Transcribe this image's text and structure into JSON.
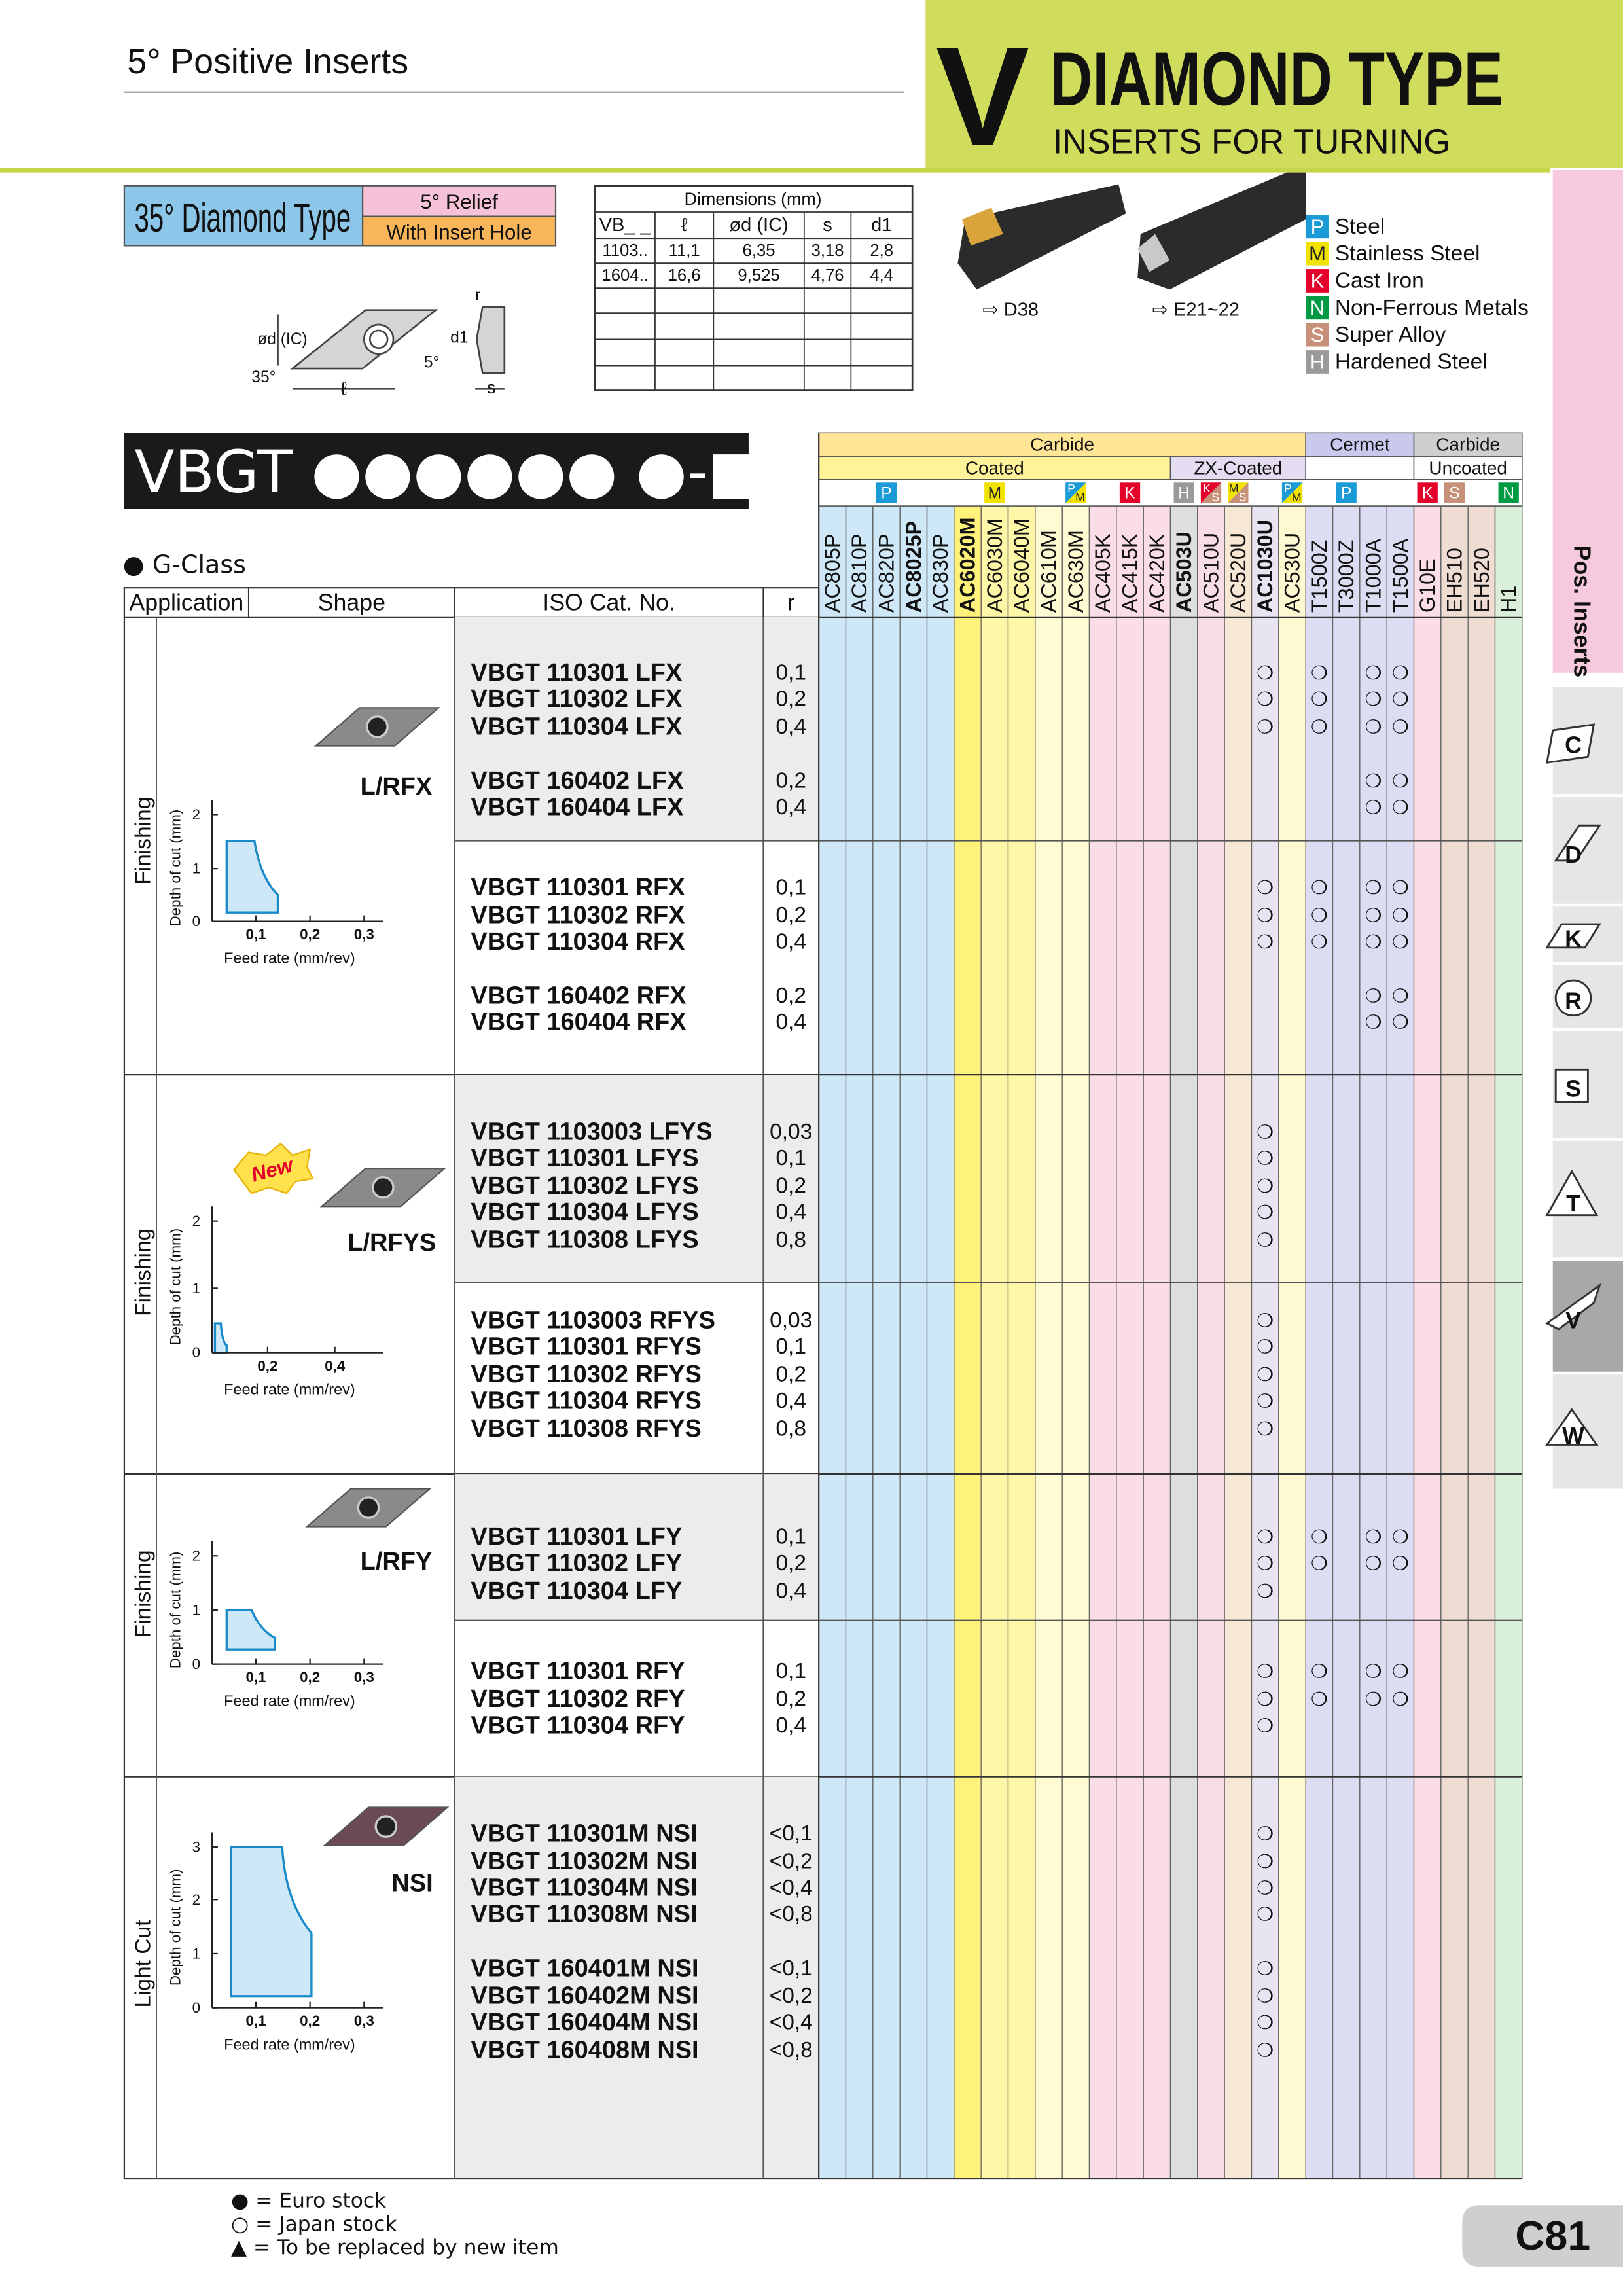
{
  "header": {
    "section": "5° Positive Inserts",
    "letter": "V",
    "title": "DIAMOND TYPE",
    "subtitle": "INSERTS FOR TURNING"
  },
  "type_box": {
    "name": "35° Diamond Type",
    "relief": "5° Relief",
    "hole": "With Insert Hole"
  },
  "drawing_labels": {
    "ic": "ød (IC)",
    "angle": "35°",
    "length": "ℓ",
    "relief": "5°",
    "thickness": "s",
    "hole": "d1",
    "radius": "r"
  },
  "dimensions": {
    "caption": "Dimensions (mm)",
    "headers": [
      "VB_ _",
      "ℓ",
      "ød (IC)",
      "s",
      "d1"
    ],
    "rows": [
      [
        "1103..",
        "11,1",
        "6,35",
        "3,18",
        "2,8"
      ],
      [
        "1604..",
        "16,6",
        "9,525",
        "4,76",
        "4,4"
      ]
    ]
  },
  "holders": [
    "⇨ D38",
    "⇨ E21~22"
  ],
  "materials": [
    {
      "code": "P",
      "label": "Steel",
      "color": "#1a9ad6"
    },
    {
      "code": "M",
      "label": "Stainless Steel",
      "color": "#f2e200"
    },
    {
      "code": "K",
      "label": "Cast Iron",
      "color": "#e3002b"
    },
    {
      "code": "N",
      "label": "Non-Ferrous Metals",
      "color": "#009a44"
    },
    {
      "code": "S",
      "label": "Super Alloy",
      "color": "#c69178"
    },
    {
      "code": "H",
      "label": "Hardened Steel",
      "color": "#9a9a9a"
    }
  ],
  "product_code": "VBGT ●●●●●● ●-■■",
  "class_label": "● G-Class",
  "table": {
    "headers": [
      "Application",
      "Shape",
      "ISO Cat. No.",
      "r"
    ],
    "families": [
      {
        "label": "Carbide",
        "subfamilies": [
          {
            "label": "Coated",
            "grades": [
              {
                "name": "AC805P",
                "color": "#cfe8f8",
                "iso": null,
                "bold": false
              },
              {
                "name": "AC810P",
                "color": "#cfe8f8",
                "iso": null,
                "bold": false
              },
              {
                "name": "AC820P",
                "color": "#cfe8f8",
                "iso": [
                  "P"
                ],
                "bold": false
              },
              {
                "name": "AC8025P",
                "color": "#cfe8f8",
                "iso": null,
                "bold": true
              },
              {
                "name": "AC830P",
                "color": "#cfe8f8",
                "iso": null,
                "bold": false
              },
              {
                "name": "AC6020M",
                "color": "#fff27a",
                "iso": null,
                "bold": true
              },
              {
                "name": "AC6030M",
                "color": "#fff7a8",
                "iso": [
                  "M"
                ],
                "bold": false
              },
              {
                "name": "AC6040M",
                "color": "#fff7a8",
                "iso": null,
                "bold": false
              },
              {
                "name": "AC610M",
                "color": "#fffbd2",
                "iso": null,
                "bold": false
              },
              {
                "name": "AC630M",
                "color": "#fffbd2",
                "iso": [
                  "P",
                  "M"
                ],
                "bold": false
              },
              {
                "name": "AC405K",
                "color": "#fbdde8",
                "iso": null,
                "bold": false
              },
              {
                "name": "AC415K",
                "color": "#fbdde8",
                "iso": [
                  "K"
                ],
                "bold": false
              },
              {
                "name": "AC420K",
                "color": "#fbdde8",
                "iso": null,
                "bold": false
              }
            ]
          },
          {
            "label": "ZX-Coated",
            "grades": [
              {
                "name": "AC503U",
                "color": "#dedede",
                "iso": [
                  "H"
                ],
                "bold": true
              },
              {
                "name": "AC510U",
                "color": "#f9dde6",
                "iso": [
                  "K",
                  "S"
                ],
                "bold": false
              },
              {
                "name": "AC520U",
                "color": "#f7e8d6",
                "iso": [
                  "M",
                  "S"
                ],
                "bold": false
              },
              {
                "name": "AC1030U",
                "color": "#e8e4f2",
                "iso": null,
                "bold": true
              },
              {
                "name": "AC530U",
                "color": "#fff9d2",
                "iso": [
                  "P",
                  "M"
                ],
                "bold": false
              }
            ]
          }
        ]
      },
      {
        "label": "Cermet",
        "subfamilies": [
          {
            "label": null,
            "grades": [
              {
                "name": "T1500Z",
                "color": "#dcdcf2",
                "iso": null,
                "bold": false
              },
              {
                "name": "T3000Z",
                "color": "#dcdcf2",
                "iso": [
                  "P"
                ],
                "bold": false
              },
              {
                "name": "T1000A",
                "color": "#dcdcf2",
                "iso": null,
                "bold": false
              },
              {
                "name": "T1500A",
                "color": "#dcdcf2",
                "iso": null,
                "bold": false
              }
            ]
          }
        ]
      },
      {
        "label": "Carbide",
        "subfamilies": [
          {
            "label": "Uncoated",
            "grades": [
              {
                "name": "G10E",
                "color": "#fbdde6",
                "iso": [
                  "K"
                ],
                "bold": false
              },
              {
                "name": "EH510",
                "color": "#efdcd2",
                "iso": [
                  "S"
                ],
                "bold": false
              },
              {
                "name": "EH520",
                "color": "#efdcd2",
                "iso": null,
                "bold": false
              },
              {
                "name": "H1",
                "color": "#d9efd9",
                "iso": [
                  "N"
                ],
                "bold": false
              }
            ]
          }
        ]
      }
    ],
    "groups": [
      {
        "application": "Finishing",
        "shape": "L/RFX",
        "badge": null,
        "chart": {
          "ylabel": "Depth of cut (mm)",
          "xlabel": "Feed rate (mm/rev)",
          "yticks": [
            "0",
            "1",
            "2"
          ],
          "xticks": [
            "0,1",
            "0,2",
            "0,3"
          ]
        },
        "blocks": [
          {
            "rows": [
              {
                "code": "VBGT 110301 LFX",
                "r": "0,1",
                "stock": {
                  "AC1030U": "❍",
                  "T1500Z": "❍",
                  "T1000A": "❍",
                  "T1500A": "❍"
                }
              },
              {
                "code": "VBGT 110302 LFX",
                "r": "0,2",
                "stock": {
                  "AC1030U": "❍",
                  "T1500Z": "❍",
                  "T1000A": "❍",
                  "T1500A": "❍"
                }
              },
              {
                "code": "VBGT 110304 LFX",
                "r": "0,4",
                "stock": {
                  "AC1030U": "❍",
                  "T1500Z": "❍",
                  "T1000A": "❍",
                  "T1500A": "❍"
                }
              },
              {
                "code": "VBGT 160402 LFX",
                "r": "0,2",
                "stock": {
                  "T1000A": "❍",
                  "T1500A": "❍"
                }
              },
              {
                "code": "VBGT 160404 LFX",
                "r": "0,4",
                "stock": {
                  "T1000A": "❍",
                  "T1500A": "❍"
                }
              }
            ]
          },
          {
            "rows": [
              {
                "code": "VBGT 110301 RFX",
                "r": "0,1",
                "stock": {
                  "AC1030U": "❍",
                  "T1500Z": "❍",
                  "T1000A": "❍",
                  "T1500A": "❍"
                }
              },
              {
                "code": "VBGT 110302 RFX",
                "r": "0,2",
                "stock": {
                  "AC1030U": "❍",
                  "T1500Z": "❍",
                  "T1000A": "❍",
                  "T1500A": "❍"
                }
              },
              {
                "code": "VBGT 110304 RFX",
                "r": "0,4",
                "stock": {
                  "AC1030U": "❍",
                  "T1500Z": "❍",
                  "T1000A": "❍",
                  "T1500A": "❍"
                }
              },
              {
                "code": "VBGT 160402 RFX",
                "r": "0,2",
                "stock": {
                  "T1000A": "❍",
                  "T1500A": "❍"
                }
              },
              {
                "code": "VBGT 160404 RFX",
                "r": "0,4",
                "stock": {
                  "T1000A": "❍",
                  "T1500A": "❍"
                }
              }
            ]
          }
        ]
      },
      {
        "application": "Finishing",
        "shape": "L/RFYS",
        "badge": "New",
        "chart": {
          "ylabel": "Depth of cut (mm)",
          "xlabel": "Feed rate (mm/rev)",
          "yticks": [
            "0",
            "1",
            "2"
          ],
          "xticks": [
            "0,2",
            "0,4"
          ]
        },
        "blocks": [
          {
            "rows": [
              {
                "code": "VBGT 1103003 LFYS",
                "r": "0,03",
                "stock": {
                  "AC1030U": "❍"
                }
              },
              {
                "code": "VBGT 110301 LFYS",
                "r": "0,1",
                "stock": {
                  "AC1030U": "❍"
                }
              },
              {
                "code": "VBGT 110302 LFYS",
                "r": "0,2",
                "stock": {
                  "AC1030U": "❍"
                }
              },
              {
                "code": "VBGT 110304 LFYS",
                "r": "0,4",
                "stock": {
                  "AC1030U": "❍"
                }
              },
              {
                "code": "VBGT 110308 LFYS",
                "r": "0,8",
                "stock": {
                  "AC1030U": "❍"
                }
              }
            ]
          },
          {
            "rows": [
              {
                "code": "VBGT 1103003 RFYS",
                "r": "0,03",
                "stock": {
                  "AC1030U": "❍"
                }
              },
              {
                "code": "VBGT 110301 RFYS",
                "r": "0,1",
                "stock": {
                  "AC1030U": "❍"
                }
              },
              {
                "code": "VBGT 110302 RFYS",
                "r": "0,2",
                "stock": {
                  "AC1030U": "❍"
                }
              },
              {
                "code": "VBGT 110304 RFYS",
                "r": "0,4",
                "stock": {
                  "AC1030U": "❍"
                }
              },
              {
                "code": "VBGT 110308 RFYS",
                "r": "0,8",
                "stock": {
                  "AC1030U": "❍"
                }
              }
            ]
          }
        ]
      },
      {
        "application": "Finishing",
        "shape": "L/RFY",
        "badge": null,
        "chart": {
          "ylabel": "Depth of cut (mm)",
          "xlabel": "Feed rate (mm/rev)",
          "yticks": [
            "0",
            "1",
            "2"
          ],
          "xticks": [
            "0,1",
            "0,2",
            "0,3"
          ]
        },
        "blocks": [
          {
            "rows": [
              {
                "code": "VBGT 110301 LFY",
                "r": "0,1",
                "stock": {
                  "AC1030U": "❍",
                  "T1500Z": "❍",
                  "T1000A": "❍",
                  "T1500A": "❍"
                }
              },
              {
                "code": "VBGT 110302 LFY",
                "r": "0,2",
                "stock": {
                  "AC1030U": "❍",
                  "T1500Z": "❍",
                  "T1000A": "❍",
                  "T1500A": "❍"
                }
              },
              {
                "code": "VBGT 110304 LFY",
                "r": "0,4",
                "stock": {
                  "AC1030U": "❍"
                }
              }
            ]
          },
          {
            "rows": [
              {
                "code": "VBGT 110301 RFY",
                "r": "0,1",
                "stock": {
                  "AC1030U": "❍",
                  "T1500Z": "❍",
                  "T1000A": "❍",
                  "T1500A": "❍"
                }
              },
              {
                "code": "VBGT 110302 RFY",
                "r": "0,2",
                "stock": {
                  "AC1030U": "❍",
                  "T1500Z": "❍",
                  "T1000A": "❍",
                  "T1500A": "❍"
                }
              },
              {
                "code": "VBGT 110304 RFY",
                "r": "0,4",
                "stock": {
                  "AC1030U": "❍"
                }
              }
            ]
          }
        ]
      },
      {
        "application": "Light Cut",
        "shape": "NSI",
        "badge": null,
        "chart": {
          "ylabel": "Depth of cut (mm)",
          "xlabel": "Feed rate (mm/rev)",
          "yticks": [
            "0",
            "1",
            "2",
            "3"
          ],
          "xticks": [
            "0,1",
            "0,2",
            "0,3"
          ]
        },
        "blocks": [
          {
            "rows": [
              {
                "code": "VBGT 110301M NSI",
                "r": "<0,1",
                "stock": {
                  "AC1030U": "❍"
                }
              },
              {
                "code": "VBGT 110302M NSI",
                "r": "<0,2",
                "stock": {
                  "AC1030U": "❍"
                }
              },
              {
                "code": "VBGT 110304M NSI",
                "r": "<0,4",
                "stock": {
                  "AC1030U": "❍"
                }
              },
              {
                "code": "VBGT 110308M NSI",
                "r": "<0,8",
                "stock": {
                  "AC1030U": "❍"
                }
              },
              {
                "code": "VBGT 160401M NSI",
                "r": "<0,1",
                "stock": {
                  "AC1030U": "❍"
                }
              },
              {
                "code": "VBGT 160402M NSI",
                "r": "<0,2",
                "stock": {
                  "AC1030U": "❍"
                }
              },
              {
                "code": "VBGT 160404M NSI",
                "r": "<0,4",
                "stock": {
                  "AC1030U": "❍"
                }
              },
              {
                "code": "VBGT 160408M NSI",
                "r": "<0,8",
                "stock": {
                  "AC1030U": "❍"
                }
              }
            ]
          }
        ]
      }
    ]
  },
  "footer": {
    "legend": [
      "● = Euro stock",
      "○ = Japan stock",
      "▲ = To be replaced by new item"
    ],
    "page": "C81"
  },
  "side_tabs": {
    "title": "Pos. Inserts",
    "letters": [
      "C",
      "D",
      "K",
      "R",
      "S",
      "T",
      "V",
      "W"
    ],
    "active": "V"
  }
}
